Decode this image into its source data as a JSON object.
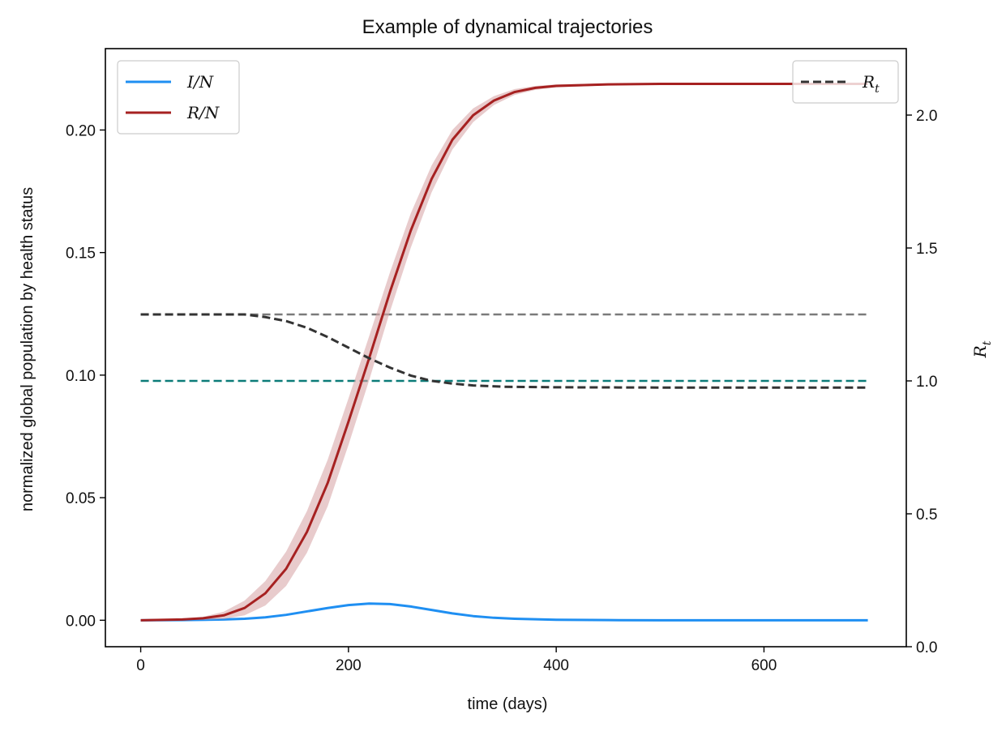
{
  "chart_data": {
    "type": "line",
    "title": "Example of dynamical trajectories",
    "xlabel": "time (days)",
    "ylabel": "normalized global population by health status",
    "y2label": "R_t",
    "xlim": [
      -34,
      737
    ],
    "ylim": [
      -0.0108,
      0.2332
    ],
    "y2lim": [
      0.0,
      2.25
    ],
    "xticks": [
      0,
      200,
      400,
      600
    ],
    "yticks": [
      0.0,
      0.05,
      0.1,
      0.15,
      0.2
    ],
    "ytick_labels": [
      "0.00",
      "0.05",
      "0.10",
      "0.15",
      "0.20"
    ],
    "y2ticks": [
      0.0,
      0.5,
      1.0,
      1.5,
      2.0
    ],
    "y2tick_labels": [
      "0.0",
      "0.5",
      "1.0",
      "1.5",
      "2.0"
    ],
    "grid": false,
    "colors": {
      "infected": "#1f8ff2",
      "recovered": "#a62121",
      "recovered_band": "#d8a8aa",
      "rt": "#333333",
      "reference_high": "#7a7a7a",
      "reference_one": "#0b7b78"
    },
    "series": [
      {
        "name": "I/N",
        "axis": "left",
        "color": "#1f8ff2",
        "x": [
          0,
          40,
          80,
          100,
          120,
          140,
          160,
          180,
          200,
          220,
          240,
          260,
          280,
          300,
          320,
          340,
          360,
          400,
          450,
          500,
          600,
          700
        ],
        "values": [
          0.0,
          5e-05,
          0.0003,
          0.0006,
          0.0012,
          0.0022,
          0.0036,
          0.005,
          0.0062,
          0.0068,
          0.0066,
          0.0056,
          0.0042,
          0.0028,
          0.0017,
          0.001,
          0.0006,
          0.0002,
          5e-05,
          0.0,
          0.0,
          0.0
        ]
      },
      {
        "name": "R/N",
        "axis": "left",
        "color": "#a62121",
        "x": [
          0,
          40,
          60,
          80,
          100,
          120,
          140,
          160,
          180,
          200,
          220,
          240,
          260,
          280,
          300,
          320,
          340,
          360,
          380,
          400,
          450,
          500,
          600,
          700
        ],
        "values": [
          0.0,
          0.0003,
          0.0008,
          0.002,
          0.005,
          0.011,
          0.021,
          0.036,
          0.056,
          0.081,
          0.107,
          0.134,
          0.159,
          0.18,
          0.196,
          0.206,
          0.212,
          0.2155,
          0.2172,
          0.218,
          0.2186,
          0.2188,
          0.2188,
          0.2188
        ],
        "band_halfwidth": [
          0.0,
          0.0002,
          0.0006,
          0.0015,
          0.003,
          0.005,
          0.007,
          0.0085,
          0.0095,
          0.0095,
          0.009,
          0.008,
          0.007,
          0.0055,
          0.004,
          0.0028,
          0.0018,
          0.0012,
          0.0008,
          0.0006,
          0.0004,
          0.0003,
          0.0003,
          0.0003
        ]
      },
      {
        "name": "R_t",
        "axis": "right",
        "style": "dashed",
        "color": "#333333",
        "x": [
          0,
          100,
          120,
          140,
          160,
          180,
          200,
          220,
          240,
          260,
          280,
          300,
          320,
          350,
          400,
          500,
          600,
          700
        ],
        "values": [
          1.25,
          1.25,
          1.24,
          1.225,
          1.2,
          1.165,
          1.125,
          1.085,
          1.05,
          1.02,
          1.0,
          0.99,
          0.983,
          0.978,
          0.976,
          0.975,
          0.975,
          0.975
        ]
      }
    ],
    "reference_lines": [
      {
        "axis": "right",
        "y": 1.25,
        "x_from": 0,
        "x_to": 700,
        "color": "#7a7a7a",
        "style": "dashed"
      },
      {
        "axis": "right",
        "y": 1.0,
        "x_from": 0,
        "x_to": 700,
        "color": "#0b7b78",
        "style": "dashed"
      }
    ],
    "legend": [
      {
        "location": "upper-left",
        "entries": [
          {
            "label": "I/N",
            "color": "#1f8ff2",
            "style": "solid"
          },
          {
            "label": "R/N",
            "color": "#a62121",
            "style": "solid"
          }
        ]
      },
      {
        "location": "upper-right",
        "entries": [
          {
            "label": "R_t",
            "color": "#333333",
            "style": "dashed"
          }
        ]
      }
    ]
  }
}
